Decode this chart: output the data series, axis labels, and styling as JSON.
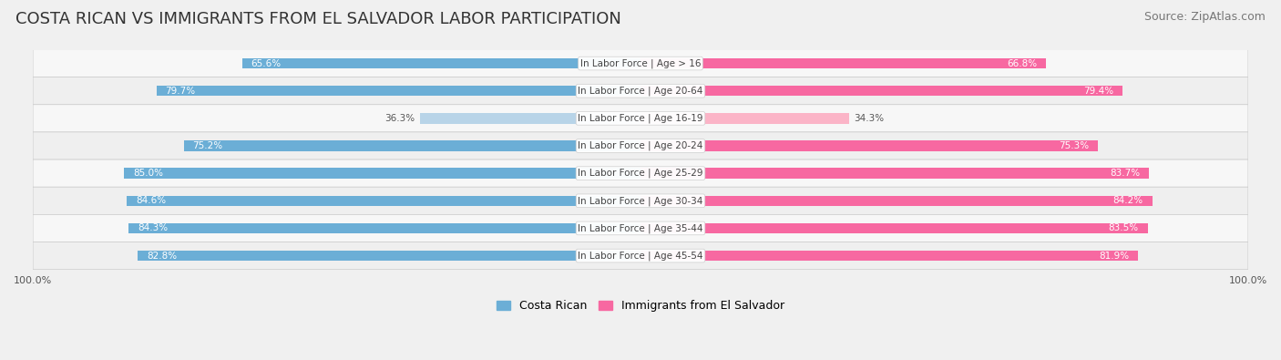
{
  "title": "COSTA RICAN VS IMMIGRANTS FROM EL SALVADOR LABOR PARTICIPATION",
  "source": "Source: ZipAtlas.com",
  "categories": [
    "In Labor Force | Age > 16",
    "In Labor Force | Age 20-64",
    "In Labor Force | Age 16-19",
    "In Labor Force | Age 20-24",
    "In Labor Force | Age 25-29",
    "In Labor Force | Age 30-34",
    "In Labor Force | Age 35-44",
    "In Labor Force | Age 45-54"
  ],
  "costa_rican": [
    65.6,
    79.7,
    36.3,
    75.2,
    85.0,
    84.6,
    84.3,
    82.8
  ],
  "el_salvador": [
    66.8,
    79.4,
    34.3,
    75.3,
    83.7,
    84.2,
    83.5,
    81.9
  ],
  "costa_rican_color": "#6baed6",
  "costa_rican_light_color": "#b8d4e8",
  "el_salvador_color": "#f768a1",
  "el_salvador_light_color": "#fbb4c7",
  "max_value": 100.0,
  "title_fontsize": 13,
  "source_fontsize": 9,
  "label_fontsize": 7.5,
  "value_fontsize": 7.5,
  "legend_fontsize": 9,
  "axis_label_fontsize": 8
}
